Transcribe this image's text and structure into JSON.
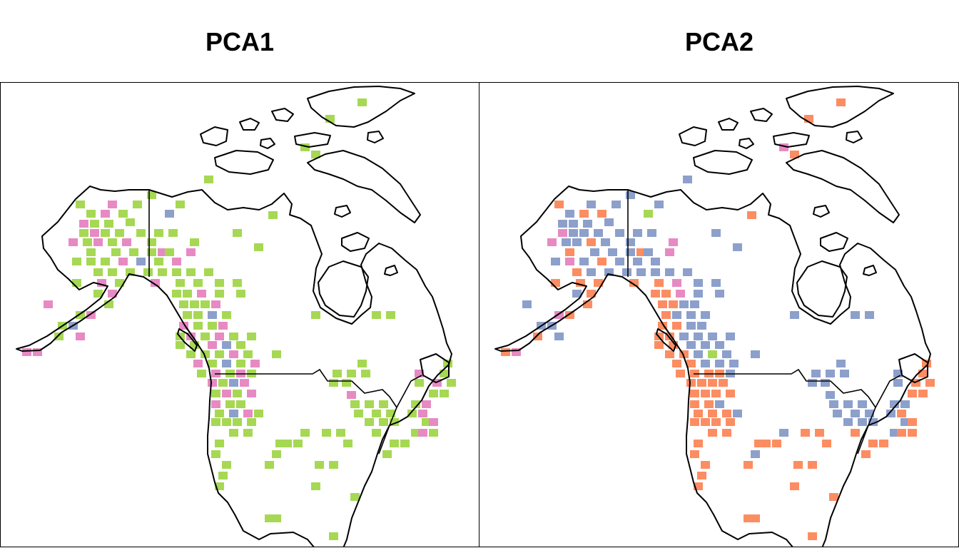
{
  "panels": [
    {
      "title": "PCA1",
      "palette": [
        "#a6d854",
        "#e78ac3",
        "#8da0cb"
      ]
    },
    {
      "title": "PCA2",
      "palette": [
        "#fc8d62",
        "#8da0cb",
        "#e78ac3",
        "#a6d854"
      ]
    }
  ]
}
